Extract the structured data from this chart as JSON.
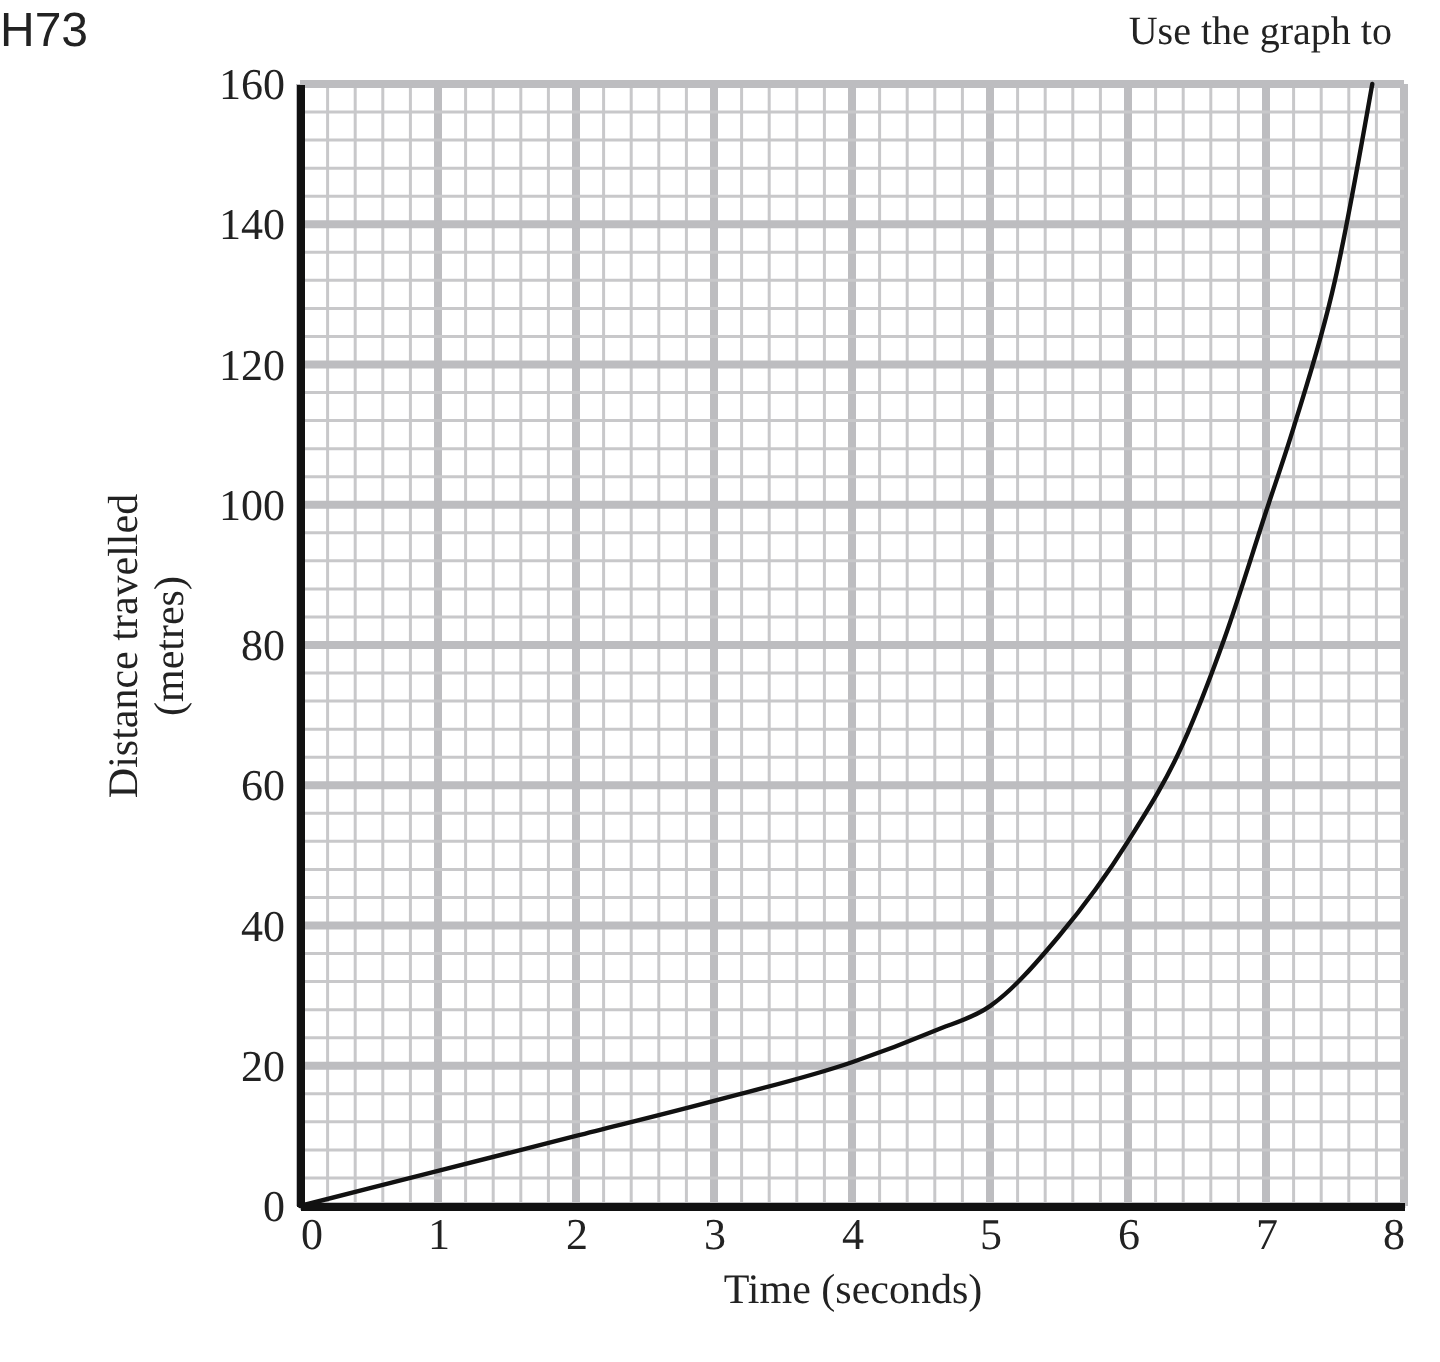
{
  "chart_data": {
    "type": "line",
    "xlabel": "Time (seconds)",
    "ylabel": "Distance travelled\n(metres)",
    "annotations": [
      "H73",
      "Use the graph to"
    ],
    "series": [
      {
        "color": "#111111",
        "x": [
          0,
          1,
          2,
          3,
          4,
          4.6,
          5,
          5.5,
          6,
          6.4,
          6.7,
          7,
          7.2,
          7.5,
          7.77
        ],
        "values": [
          0,
          5,
          10,
          15,
          20.5,
          25,
          28.5,
          38.5,
          52,
          66,
          81,
          99,
          111,
          132,
          160
        ]
      }
    ],
    "xlim": [
      0,
      8
    ],
    "ylim": [
      0,
      160
    ],
    "xticks": [
      0,
      1,
      2,
      3,
      4,
      5,
      6,
      7,
      8
    ],
    "yticks": [
      0,
      20,
      40,
      60,
      80,
      100,
      120,
      140,
      160
    ],
    "grid": true,
    "line_style": "solid",
    "marker": "none"
  }
}
